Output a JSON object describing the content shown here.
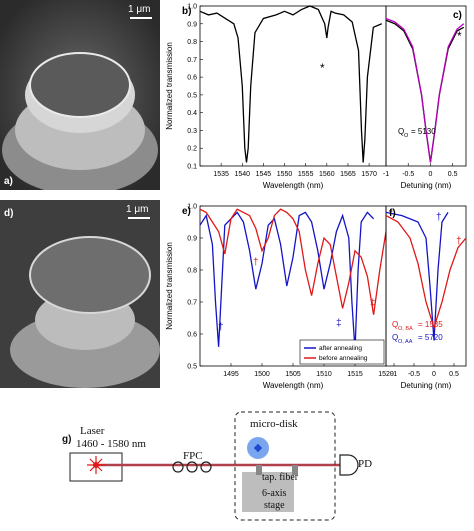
{
  "panels": {
    "a": {
      "label": "a)",
      "scale": "1 μm"
    },
    "b": {
      "label": "b)",
      "ylabel": "Normalized transmission",
      "xlabel": "Wavelength (nm)",
      "marker": "*"
    },
    "c": {
      "label": "c)",
      "xlabel": "Detuning (nm)",
      "q_label": "Q",
      "q_sub": "O",
      "q_value": "= 5130",
      "marker": "*"
    },
    "d": {
      "label": "d)",
      "scale": "1 μm"
    },
    "e": {
      "label": "e)",
      "ylabel": "Normalized transmission",
      "xlabel": "Wavelength (nm)",
      "marker_dagger": "†",
      "marker_ddagger": "‡"
    },
    "f": {
      "label": "f)",
      "xlabel": "Detuning (nm)",
      "q_ba_label": "Q",
      "q_ba_sub": "O, BA",
      "q_ba_value": "= 1535",
      "q_aa_label": "Q",
      "q_aa_sub": "O, AA",
      "q_aa_value": "= 5720",
      "marker": "†"
    },
    "g": {
      "label": "g)"
    }
  },
  "legend": {
    "after": "after annealing",
    "before": "before annealing"
  },
  "setup": {
    "laser": "Laser",
    "laser_range": "1460 - 1580 nm",
    "fpc": "FPC",
    "microdisk": "micro-disk",
    "taper": "tap. fiber",
    "stage_line1": "6-axis",
    "stage_line2": "stage",
    "pd": "PD"
  },
  "colors": {
    "after": "#1414c8",
    "before": "#e01818",
    "fit": "#b400b4",
    "fiber": "#b0404a",
    "disk": "#7aa6f0"
  },
  "chart_data": [
    {
      "panel": "b",
      "type": "line",
      "xlabel": "Wavelength (nm)",
      "ylabel": "Normalized transmission",
      "xlim": [
        1530,
        1574
      ],
      "ylim": [
        0.1,
        1.0
      ],
      "xticks": [
        1535,
        1540,
        1545,
        1550,
        1555,
        1560,
        1565,
        1570
      ],
      "yticks": [
        0.1,
        0.2,
        0.3,
        0.4,
        0.5,
        0.6,
        0.7,
        0.8,
        0.9,
        1.0
      ],
      "series": [
        {
          "color": "#000000",
          "x": [
            1530,
            1532,
            1534,
            1536,
            1538,
            1539,
            1540,
            1540.6,
            1541,
            1541.4,
            1542,
            1543,
            1545,
            1548,
            1550,
            1552,
            1554,
            1556,
            1558,
            1559.5,
            1560,
            1560.3,
            1561,
            1562,
            1564,
            1566,
            1567.5,
            1568.2,
            1568.6,
            1569,
            1569.6,
            1571,
            1573
          ],
          "y": [
            0.97,
            0.95,
            0.96,
            0.93,
            0.9,
            0.82,
            0.55,
            0.2,
            0.12,
            0.2,
            0.55,
            0.85,
            0.93,
            0.95,
            0.97,
            0.95,
            0.98,
            1.0,
            0.98,
            0.9,
            0.82,
            0.88,
            0.97,
            0.96,
            0.95,
            0.91,
            0.75,
            0.3,
            0.12,
            0.25,
            0.6,
            0.88,
            0.9
          ]
        }
      ]
    },
    {
      "panel": "c",
      "type": "line",
      "xlabel": "Detuning (nm)",
      "xlim": [
        -1.0,
        0.8
      ],
      "ylim": [
        0.1,
        1.0
      ],
      "xticks": [
        -1.0,
        -0.5,
        0.0,
        0.5
      ],
      "series": [
        {
          "color": "#000000",
          "x": [
            -1.0,
            -0.8,
            -0.6,
            -0.4,
            -0.2,
            -0.1,
            0,
            0.1,
            0.2,
            0.4,
            0.6,
            0.75
          ],
          "y": [
            0.92,
            0.9,
            0.86,
            0.76,
            0.5,
            0.3,
            0.12,
            0.3,
            0.5,
            0.76,
            0.86,
            0.88
          ]
        },
        {
          "color": "#b400b4",
          "x": [
            -1.0,
            -0.8,
            -0.6,
            -0.4,
            -0.2,
            -0.1,
            0,
            0.1,
            0.2,
            0.4,
            0.6,
            0.75
          ],
          "y": [
            0.93,
            0.91,
            0.87,
            0.77,
            0.5,
            0.3,
            0.12,
            0.3,
            0.5,
            0.77,
            0.87,
            0.9
          ]
        }
      ]
    },
    {
      "panel": "e",
      "type": "line",
      "xlabel": "Wavelength (nm)",
      "ylabel": "Normalized transmission",
      "xlim": [
        1490,
        1520
      ],
      "ylim": [
        0.5,
        1.0
      ],
      "xticks": [
        1495,
        1500,
        1505,
        1510,
        1515,
        1520
      ],
      "yticks": [
        0.5,
        0.6,
        0.7,
        0.8,
        0.9,
        1.0
      ],
      "series": [
        {
          "name": "after annealing",
          "color": "#1414c8",
          "x": [
            1490,
            1491,
            1492,
            1492.5,
            1493,
            1493.5,
            1494,
            1496,
            1497,
            1498,
            1499,
            1500,
            1501,
            1502,
            1503,
            1504,
            1505,
            1506,
            1507,
            1508,
            1509,
            1510,
            1511,
            1512,
            1513,
            1514,
            1514.5,
            1515,
            1515.5,
            1516,
            1517,
            1518
          ],
          "y": [
            0.94,
            0.97,
            0.88,
            0.7,
            0.56,
            0.75,
            0.94,
            0.98,
            0.95,
            0.86,
            0.74,
            0.82,
            0.94,
            0.96,
            0.88,
            0.75,
            0.84,
            0.97,
            0.98,
            0.95,
            0.86,
            0.74,
            0.82,
            0.92,
            0.97,
            0.9,
            0.7,
            0.55,
            0.8,
            0.95,
            0.98,
            0.96
          ]
        },
        {
          "name": "before annealing",
          "color": "#e01818",
          "x": [
            1490,
            1491,
            1492,
            1493,
            1494,
            1495,
            1496,
            1497,
            1498,
            1499,
            1500,
            1501,
            1502,
            1503,
            1504,
            1505,
            1506,
            1507,
            1508,
            1509,
            1510,
            1511,
            1512,
            1513,
            1514,
            1515,
            1516,
            1517,
            1518,
            1519,
            1520
          ],
          "y": [
            0.99,
            0.98,
            0.95,
            0.92,
            0.85,
            0.96,
            0.99,
            0.98,
            0.97,
            0.93,
            0.86,
            0.9,
            0.97,
            0.99,
            0.98,
            0.96,
            0.92,
            0.8,
            0.72,
            0.82,
            0.9,
            0.88,
            0.78,
            0.68,
            0.76,
            0.86,
            0.84,
            0.78,
            0.66,
            0.8,
            0.92
          ]
        }
      ]
    },
    {
      "panel": "f",
      "type": "line",
      "xlabel": "Detuning (nm)",
      "xlim": [
        -1.2,
        0.8
      ],
      "ylim": [
        0.5,
        1.0
      ],
      "xticks": [
        -1.0,
        -0.5,
        0.0,
        0.5
      ],
      "series": [
        {
          "name": "after annealing",
          "color": "#1414c8",
          "x": [
            -1.2,
            -0.8,
            -0.4,
            -0.2,
            -0.1,
            0,
            0.1,
            0.2,
            0.35
          ],
          "y": [
            0.98,
            0.97,
            0.95,
            0.9,
            0.75,
            0.58,
            0.8,
            0.95,
            0.98
          ]
        },
        {
          "name": "before annealing",
          "color": "#e01818",
          "x": [
            -1.2,
            -0.9,
            -0.6,
            -0.4,
            -0.2,
            0,
            0.2,
            0.4,
            0.6,
            0.8
          ],
          "y": [
            0.97,
            0.95,
            0.9,
            0.82,
            0.7,
            0.62,
            0.7,
            0.8,
            0.87,
            0.9
          ]
        }
      ]
    }
  ]
}
